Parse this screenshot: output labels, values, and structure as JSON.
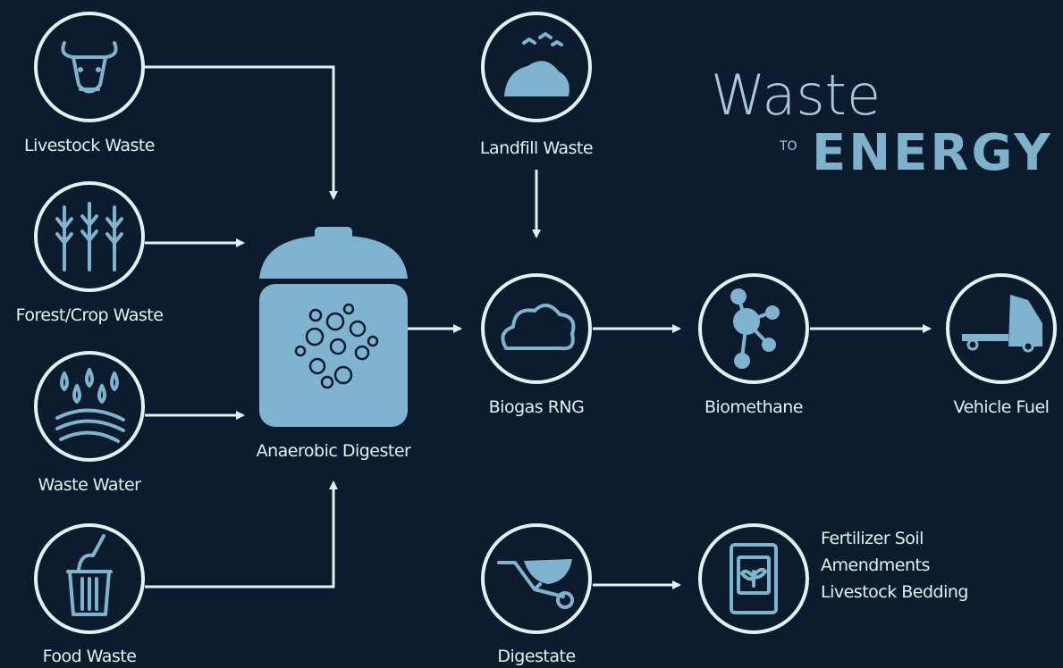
{
  "title": {
    "line1": "Waste",
    "connector": "TO",
    "line2": "ENERGY"
  },
  "nodes": [
    {
      "label": "Livestock Waste"
    },
    {
      "label": "Forest/Crop Waste"
    },
    {
      "label": "Waste Water"
    },
    {
      "label": "Food Waste"
    },
    {
      "label": "Anaerobic Digester"
    },
    {
      "label": "Landfill Waste"
    },
    {
      "label": "Biogas RNG"
    },
    {
      "label": "Biomethane"
    },
    {
      "label": "Vehicle Fuel"
    },
    {
      "label": "Digestate"
    },
    {
      "label_lines": [
        "Fertilizer Soil",
        "Amendments",
        "Livestock Bedding"
      ]
    }
  ]
}
